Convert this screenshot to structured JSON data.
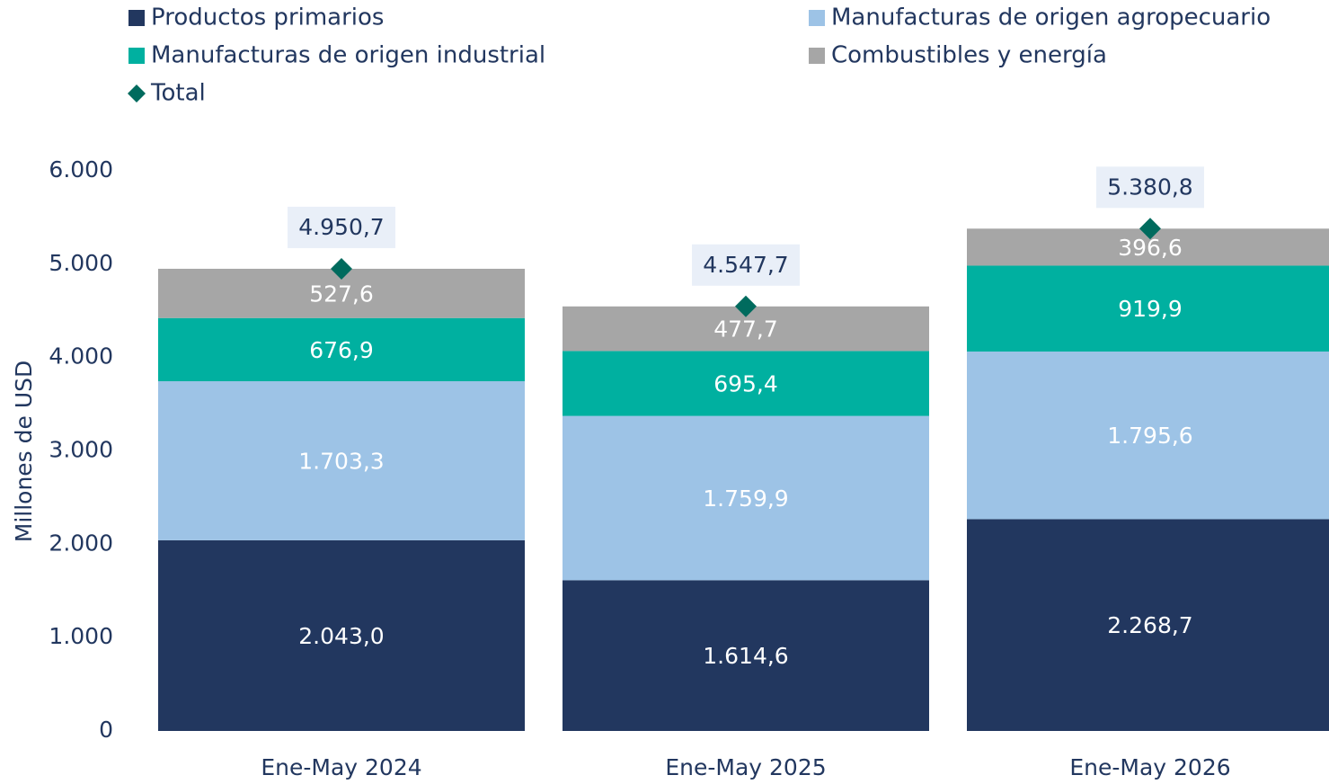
{
  "chart_data": {
    "type": "stacked_bar",
    "ylabel": "Millones de USD",
    "categories": [
      "Ene-May 2024",
      "Ene-May 2025",
      "Ene-May 2026"
    ],
    "series": [
      {
        "name": "Productos primarios",
        "color": "#22375f",
        "values": [
          2043.0,
          1614.6,
          2268.7
        ],
        "value_labels": [
          "2.043,0",
          "1.614,6",
          "2.268,7"
        ]
      },
      {
        "name": "Manufacturas de origen agropecuario",
        "color": "#9dc3e6",
        "values": [
          1703.3,
          1759.9,
          1795.6
        ],
        "value_labels": [
          "1.703,3",
          "1.759,9",
          "1.795,6"
        ]
      },
      {
        "name": "Manufacturas de origen industrial",
        "color": "#00b0a0",
        "values": [
          676.9,
          695.4,
          919.9
        ],
        "value_labels": [
          "676,9",
          "695,4",
          "919,9"
        ]
      },
      {
        "name": "Combustibles y energía",
        "color": "#a6a6a6",
        "values": [
          527.6,
          477.7,
          396.6
        ],
        "value_labels": [
          "527,6",
          "477,7",
          "396,6"
        ]
      }
    ],
    "total": {
      "name": "Total",
      "color": "#006b5e",
      "values": [
        4950.7,
        4547.7,
        5380.8
      ],
      "value_labels": [
        "4.950,7",
        "4.547,7",
        "5.380,8"
      ]
    },
    "ylim": [
      0,
      6000
    ],
    "yticks": [
      0,
      {
        "value": 1000,
        "label": "1.000"
      },
      {
        "value": 2000,
        "label": "2.000"
      },
      {
        "value": 3000,
        "label": "3.000"
      },
      {
        "value": 4000,
        "label": "4.000"
      },
      {
        "value": 5000,
        "label": "5.000"
      },
      {
        "value": 6000,
        "label": "6.000"
      }
    ],
    "grid": false
  }
}
